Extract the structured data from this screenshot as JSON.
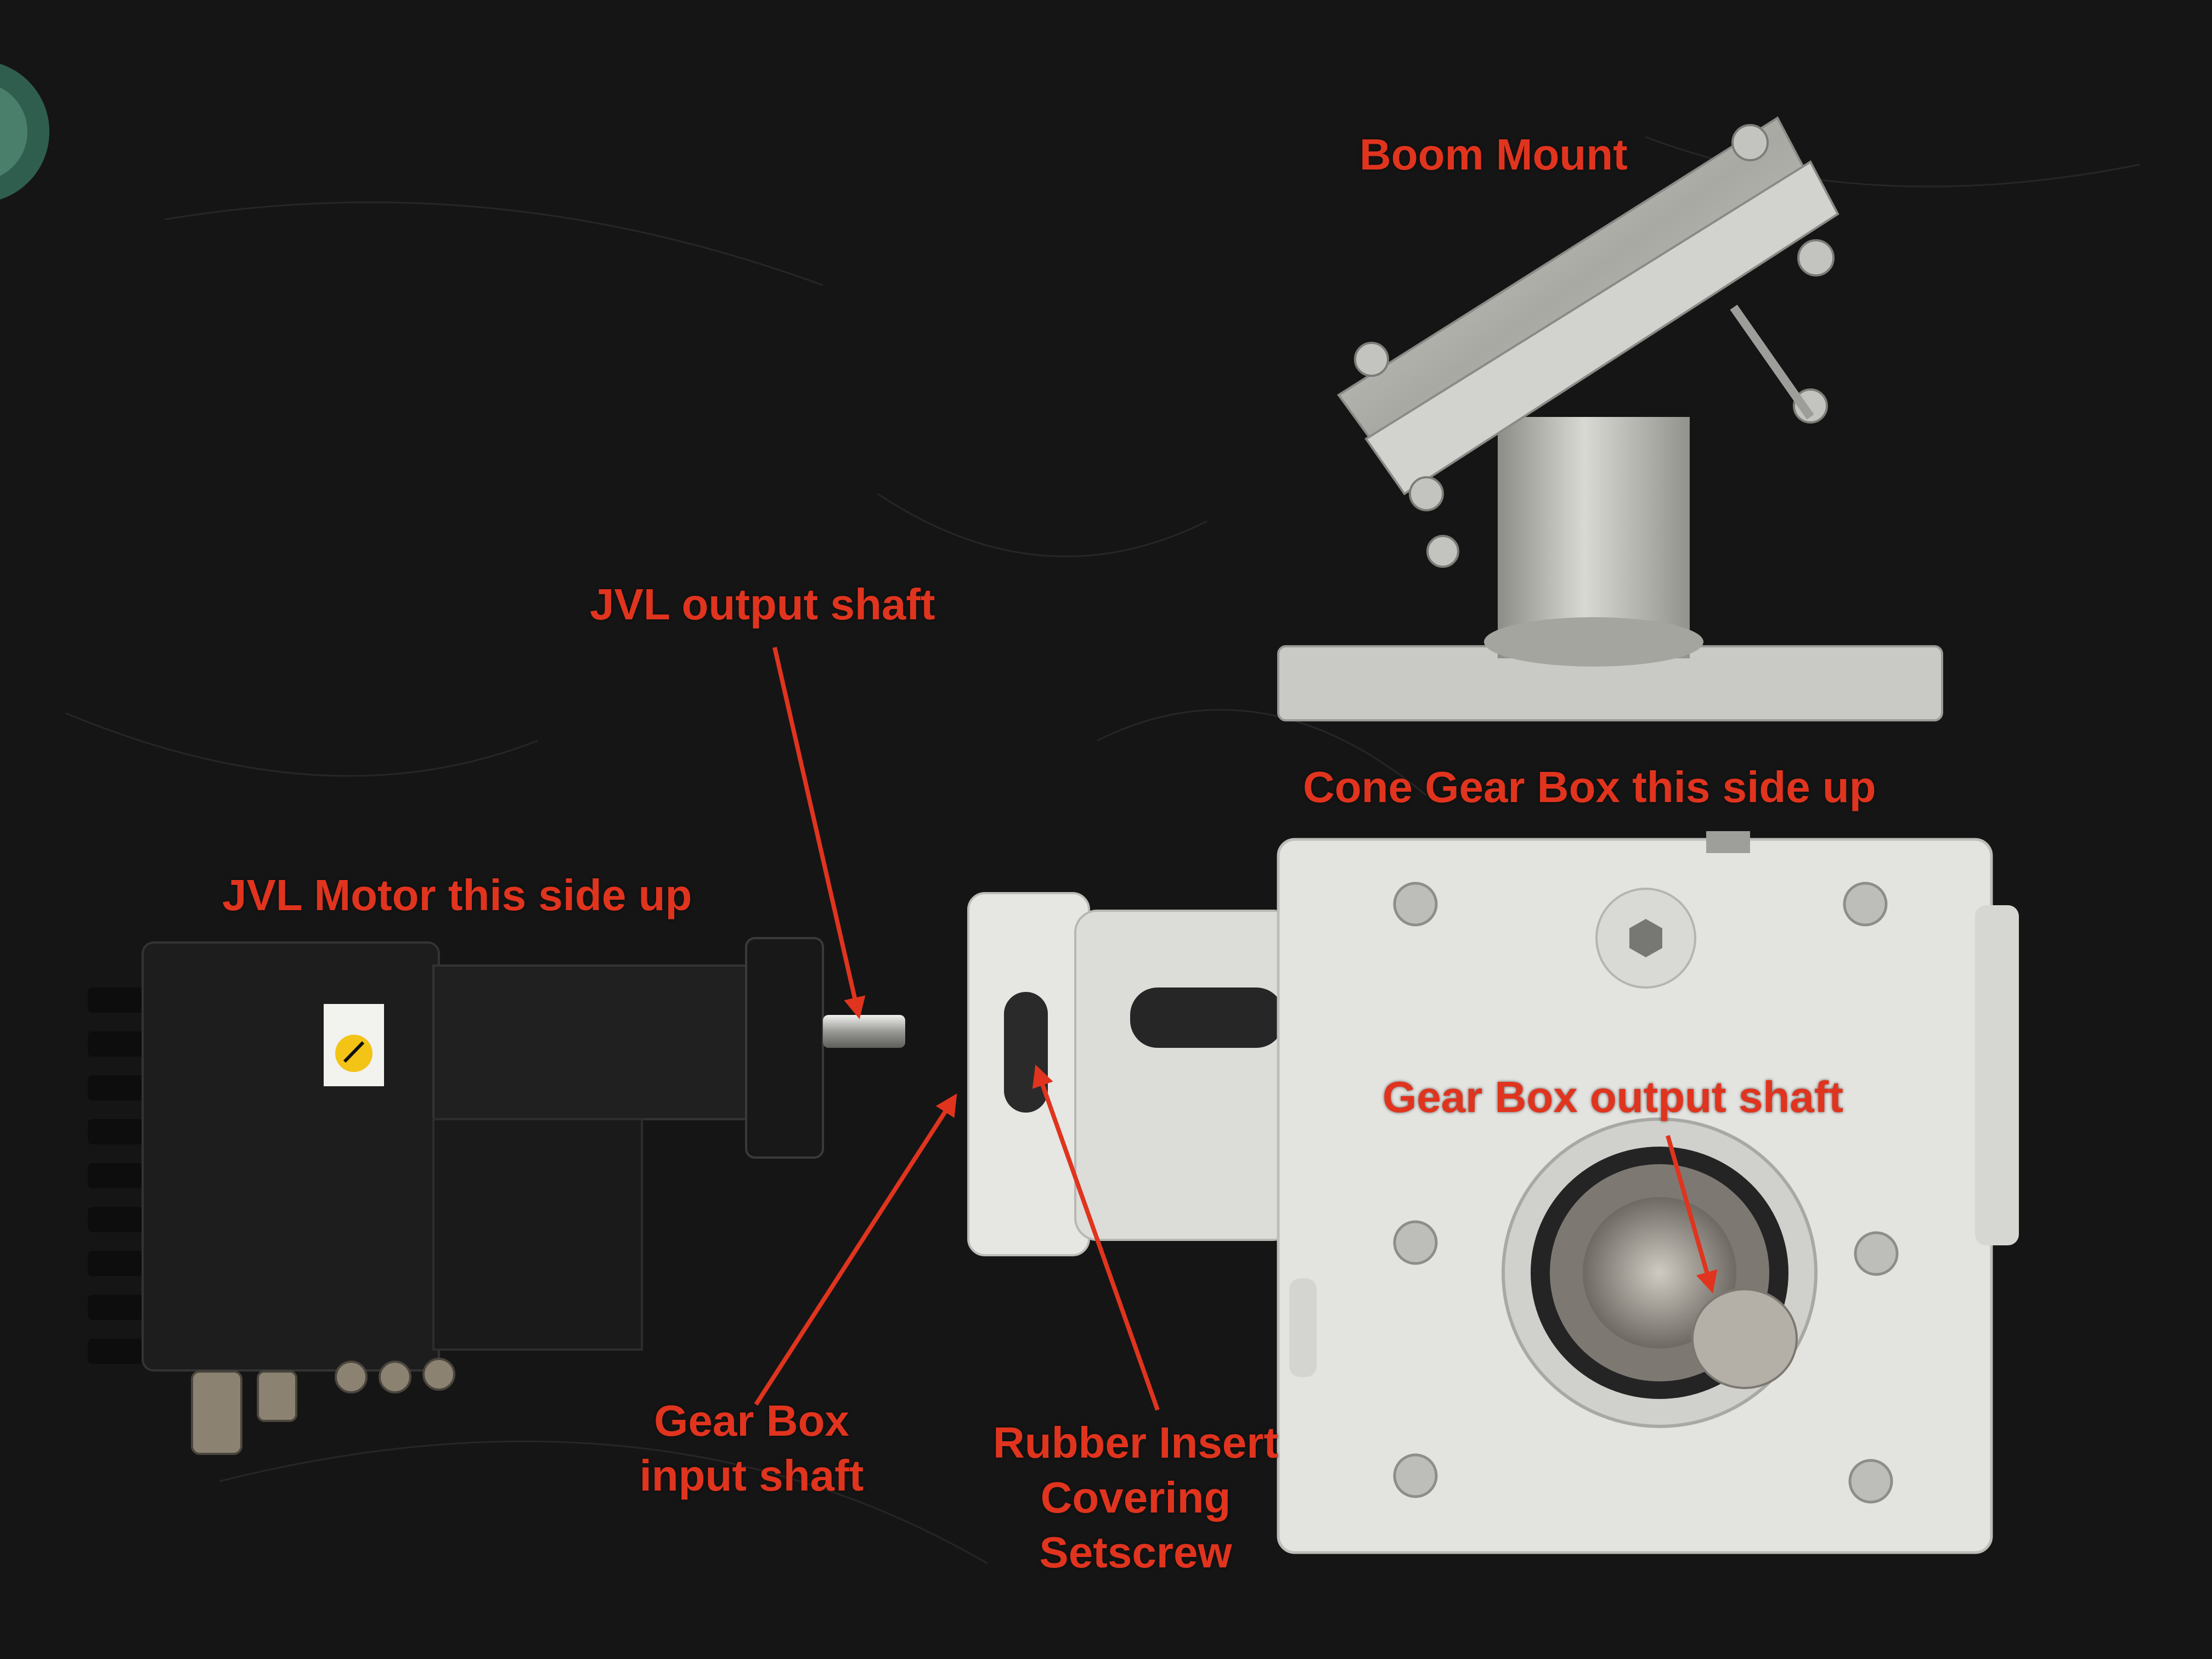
{
  "labels": {
    "boom_mount": "Boom Mount",
    "jvl_output_shaft": "JVL output shaft",
    "cone_gearbox": "Cone Gear Box this side up",
    "jvl_motor": "JVL Motor this side up",
    "gearbox_output_shaft": "Gear Box output shaft",
    "gearbox_input_shaft": [
      "Gear Box",
      "input shaft"
    ],
    "rubber_insert": [
      "Rubber Insert",
      "Covering",
      "Setscrew"
    ]
  },
  "colors": {
    "annotation": "#e0341e",
    "background": "#151515",
    "housing": "#e3e3e0",
    "motor": "#1b1b1b",
    "steel": "#b9b9b4"
  },
  "icons": {
    "warning_sticker": "warning-triangle-icon"
  }
}
